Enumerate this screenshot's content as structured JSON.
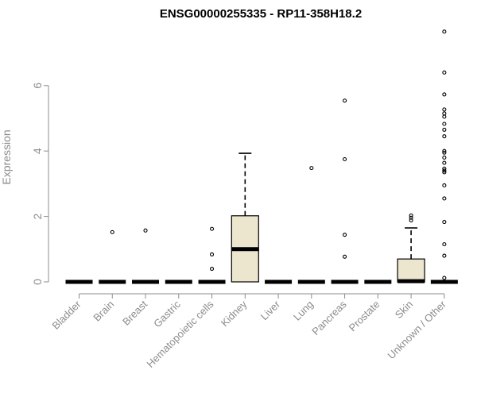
{
  "chart_data": {
    "type": "box",
    "title": "ENSG00000255335 - RP11-358H18.2",
    "xlabel": "",
    "ylabel": "Expression",
    "ylim": [
      0,
      8
    ],
    "yticks": [
      0,
      2,
      4,
      6
    ],
    "grid": false,
    "legend": "none",
    "box_fill": "#ede6cf",
    "categories": [
      "Bladder",
      "Brain",
      "Breast",
      "Gastric",
      "Hematopoietic cells",
      "Kidney",
      "Liver",
      "Lung",
      "Pancreas",
      "Prostate",
      "Skin",
      "Unknown / Other"
    ],
    "boxes": [
      {
        "category": "Bladder",
        "min": 0,
        "q1": 0,
        "median": 0,
        "q3": 0,
        "max": 0,
        "outliers": []
      },
      {
        "category": "Brain",
        "min": 0,
        "q1": 0,
        "median": 0,
        "q3": 0,
        "max": 0,
        "outliers": [
          1.52
        ]
      },
      {
        "category": "Breast",
        "min": 0,
        "q1": 0,
        "median": 0,
        "q3": 0,
        "max": 0,
        "outliers": [
          1.57
        ]
      },
      {
        "category": "Gastric",
        "min": 0,
        "q1": 0,
        "median": 0,
        "q3": 0,
        "max": 0,
        "outliers": []
      },
      {
        "category": "Hematopoietic cells",
        "min": 0,
        "q1": 0,
        "median": 0,
        "q3": 0,
        "max": 0,
        "outliers": [
          1.62,
          0.84,
          0.4
        ]
      },
      {
        "category": "Kidney",
        "min": 0,
        "q1": 0,
        "median": 1.0,
        "q3": 2.02,
        "max": 3.93,
        "outliers": []
      },
      {
        "category": "Liver",
        "min": 0,
        "q1": 0,
        "median": 0,
        "q3": 0,
        "max": 0,
        "outliers": []
      },
      {
        "category": "Lung",
        "min": 0,
        "q1": 0,
        "median": 0,
        "q3": 0,
        "max": 0,
        "outliers": [
          3.48
        ]
      },
      {
        "category": "Pancreas",
        "min": 0,
        "q1": 0,
        "median": 0,
        "q3": 0,
        "max": 0,
        "outliers": [
          5.54,
          3.75,
          1.44,
          0.77
        ]
      },
      {
        "category": "Prostate",
        "min": 0,
        "q1": 0,
        "median": 0,
        "q3": 0,
        "max": 0,
        "outliers": []
      },
      {
        "category": "Skin",
        "min": 0,
        "q1": 0,
        "median": 0.02,
        "q3": 0.7,
        "max": 1.65,
        "outliers": [
          2.03,
          1.96,
          1.88
        ]
      },
      {
        "category": "Unknown / Other",
        "min": 0,
        "q1": 0,
        "median": 0,
        "q3": 0,
        "max": 0,
        "outliers": [
          7.65,
          6.4,
          5.73,
          5.27,
          5.15,
          5.05,
          4.83,
          4.65,
          4.45,
          4.0,
          3.95,
          3.8,
          3.64,
          3.46,
          3.4,
          3.35,
          2.95,
          2.55,
          1.83,
          1.15,
          0.8,
          0.12
        ]
      }
    ]
  }
}
